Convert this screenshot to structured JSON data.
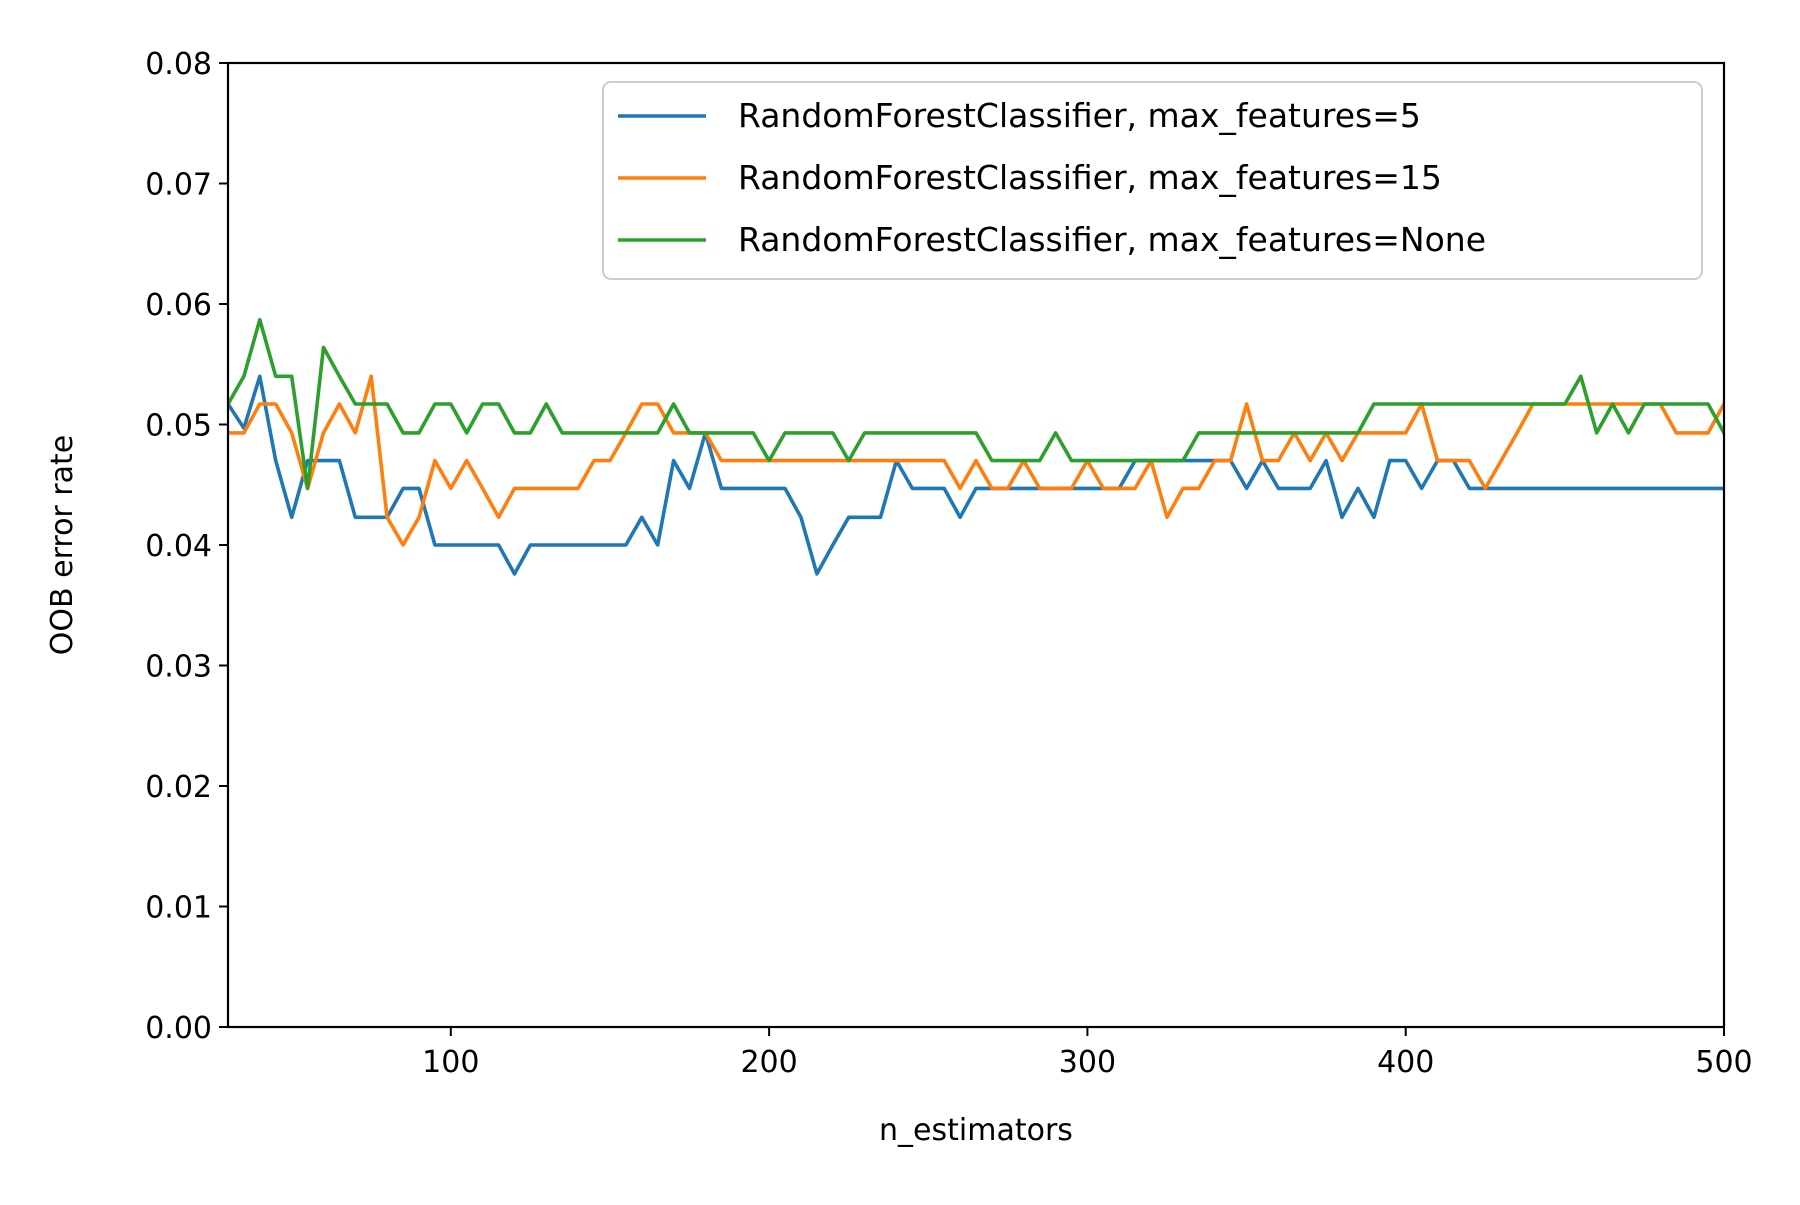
{
  "chart_data": {
    "type": "line",
    "title": "",
    "xlabel": "n_estimators",
    "ylabel": "OOB error rate",
    "xlim": [
      30,
      500
    ],
    "ylim": [
      0,
      0.08
    ],
    "xticks": [
      100,
      200,
      300,
      400,
      500
    ],
    "xtick_labels": [
      "100",
      "200",
      "300",
      "400",
      "500"
    ],
    "yticks": [
      0,
      0.01,
      0.02,
      0.03,
      0.04,
      0.05,
      0.06,
      0.07,
      0.08
    ],
    "ytick_labels": [
      "0.00",
      "0.01",
      "0.02",
      "0.03",
      "0.04",
      "0.05",
      "0.06",
      "0.07",
      "0.08"
    ],
    "grid": false,
    "legend_position": "top-right",
    "series": [
      {
        "name": "RandomForestClassifier, max_features=5",
        "color": "#1f77b4",
        "points": [
          [
            30,
            0.0517
          ],
          [
            35,
            0.0497
          ],
          [
            40,
            0.054
          ],
          [
            45,
            0.047
          ],
          [
            50,
            0.0423
          ],
          [
            55,
            0.047
          ],
          [
            60,
            0.047
          ],
          [
            65,
            0.047
          ],
          [
            70,
            0.0423
          ],
          [
            75,
            0.0423
          ],
          [
            80,
            0.0423
          ],
          [
            85,
            0.0447
          ],
          [
            90,
            0.0447
          ],
          [
            95,
            0.04
          ],
          [
            100,
            0.04
          ],
          [
            105,
            0.04
          ],
          [
            110,
            0.04
          ],
          [
            115,
            0.04
          ],
          [
            120,
            0.0376
          ],
          [
            125,
            0.04
          ],
          [
            130,
            0.04
          ],
          [
            135,
            0.04
          ],
          [
            140,
            0.04
          ],
          [
            145,
            0.04
          ],
          [
            150,
            0.04
          ],
          [
            155,
            0.04
          ],
          [
            160,
            0.0423
          ],
          [
            165,
            0.04
          ],
          [
            170,
            0.047
          ],
          [
            175,
            0.0447
          ],
          [
            180,
            0.0493
          ],
          [
            185,
            0.0447
          ],
          [
            190,
            0.0447
          ],
          [
            195,
            0.0447
          ],
          [
            200,
            0.0447
          ],
          [
            205,
            0.0447
          ],
          [
            210,
            0.0423
          ],
          [
            215,
            0.0376
          ],
          [
            220,
            0.04
          ],
          [
            225,
            0.0423
          ],
          [
            230,
            0.0423
          ],
          [
            235,
            0.0423
          ],
          [
            240,
            0.047
          ],
          [
            245,
            0.0447
          ],
          [
            250,
            0.0447
          ],
          [
            255,
            0.0447
          ],
          [
            260,
            0.0423
          ],
          [
            265,
            0.0447
          ],
          [
            270,
            0.0447
          ],
          [
            275,
            0.0447
          ],
          [
            280,
            0.0447
          ],
          [
            285,
            0.0447
          ],
          [
            290,
            0.0447
          ],
          [
            295,
            0.0447
          ],
          [
            300,
            0.0447
          ],
          [
            305,
            0.0447
          ],
          [
            310,
            0.0447
          ],
          [
            315,
            0.047
          ],
          [
            320,
            0.047
          ],
          [
            325,
            0.047
          ],
          [
            330,
            0.047
          ],
          [
            335,
            0.047
          ],
          [
            340,
            0.047
          ],
          [
            345,
            0.047
          ],
          [
            350,
            0.0447
          ],
          [
            355,
            0.047
          ],
          [
            360,
            0.0447
          ],
          [
            365,
            0.0447
          ],
          [
            370,
            0.0447
          ],
          [
            375,
            0.047
          ],
          [
            380,
            0.0423
          ],
          [
            385,
            0.0447
          ],
          [
            390,
            0.0423
          ],
          [
            395,
            0.047
          ],
          [
            400,
            0.047
          ],
          [
            405,
            0.0447
          ],
          [
            410,
            0.047
          ],
          [
            415,
            0.047
          ],
          [
            420,
            0.0447
          ],
          [
            425,
            0.0447
          ],
          [
            430,
            0.0447
          ],
          [
            435,
            0.0447
          ],
          [
            440,
            0.0447
          ],
          [
            445,
            0.0447
          ],
          [
            450,
            0.0447
          ],
          [
            455,
            0.0447
          ],
          [
            460,
            0.0447
          ],
          [
            465,
            0.0447
          ],
          [
            470,
            0.0447
          ],
          [
            475,
            0.0447
          ],
          [
            480,
            0.0447
          ],
          [
            485,
            0.0447
          ],
          [
            490,
            0.0447
          ],
          [
            495,
            0.0447
          ],
          [
            500,
            0.0447
          ]
        ]
      },
      {
        "name": "RandomForestClassifier, max_features=15",
        "color": "#ff7f0e",
        "points": [
          [
            30,
            0.0493
          ],
          [
            35,
            0.0493
          ],
          [
            40,
            0.0517
          ],
          [
            45,
            0.0517
          ],
          [
            50,
            0.0493
          ],
          [
            55,
            0.0447
          ],
          [
            60,
            0.0493
          ],
          [
            65,
            0.0517
          ],
          [
            70,
            0.0493
          ],
          [
            75,
            0.054
          ],
          [
            80,
            0.0423
          ],
          [
            85,
            0.04
          ],
          [
            90,
            0.0423
          ],
          [
            95,
            0.047
          ],
          [
            100,
            0.0447
          ],
          [
            105,
            0.047
          ],
          [
            110,
            0.0447
          ],
          [
            115,
            0.0423
          ],
          [
            120,
            0.0447
          ],
          [
            125,
            0.0447
          ],
          [
            130,
            0.0447
          ],
          [
            135,
            0.0447
          ],
          [
            140,
            0.0447
          ],
          [
            145,
            0.047
          ],
          [
            150,
            0.047
          ],
          [
            155,
            0.0493
          ],
          [
            160,
            0.0517
          ],
          [
            165,
            0.0517
          ],
          [
            170,
            0.0493
          ],
          [
            175,
            0.0493
          ],
          [
            180,
            0.0493
          ],
          [
            185,
            0.047
          ],
          [
            190,
            0.047
          ],
          [
            195,
            0.047
          ],
          [
            200,
            0.047
          ],
          [
            205,
            0.047
          ],
          [
            210,
            0.047
          ],
          [
            215,
            0.047
          ],
          [
            220,
            0.047
          ],
          [
            225,
            0.047
          ],
          [
            230,
            0.047
          ],
          [
            235,
            0.047
          ],
          [
            240,
            0.047
          ],
          [
            245,
            0.047
          ],
          [
            250,
            0.047
          ],
          [
            255,
            0.047
          ],
          [
            260,
            0.0447
          ],
          [
            265,
            0.047
          ],
          [
            270,
            0.0447
          ],
          [
            275,
            0.0447
          ],
          [
            280,
            0.047
          ],
          [
            285,
            0.0447
          ],
          [
            290,
            0.0447
          ],
          [
            295,
            0.0447
          ],
          [
            300,
            0.047
          ],
          [
            305,
            0.0447
          ],
          [
            310,
            0.0447
          ],
          [
            315,
            0.0447
          ],
          [
            320,
            0.047
          ],
          [
            325,
            0.0423
          ],
          [
            330,
            0.0447
          ],
          [
            335,
            0.0447
          ],
          [
            340,
            0.047
          ],
          [
            345,
            0.047
          ],
          [
            350,
            0.0517
          ],
          [
            355,
            0.047
          ],
          [
            360,
            0.047
          ],
          [
            365,
            0.0493
          ],
          [
            370,
            0.047
          ],
          [
            375,
            0.0493
          ],
          [
            380,
            0.047
          ],
          [
            385,
            0.0493
          ],
          [
            390,
            0.0493
          ],
          [
            395,
            0.0493
          ],
          [
            400,
            0.0493
          ],
          [
            405,
            0.0517
          ],
          [
            410,
            0.047
          ],
          [
            415,
            0.047
          ],
          [
            420,
            0.047
          ],
          [
            425,
            0.0447
          ],
          [
            430,
            0.047
          ],
          [
            435,
            0.0493
          ],
          [
            440,
            0.0517
          ],
          [
            445,
            0.0517
          ],
          [
            450,
            0.0517
          ],
          [
            455,
            0.0517
          ],
          [
            460,
            0.0517
          ],
          [
            465,
            0.0517
          ],
          [
            470,
            0.0517
          ],
          [
            475,
            0.0517
          ],
          [
            480,
            0.0517
          ],
          [
            485,
            0.0493
          ],
          [
            490,
            0.0493
          ],
          [
            495,
            0.0493
          ],
          [
            500,
            0.0517
          ]
        ]
      },
      {
        "name": "RandomForestClassifier, max_features=None",
        "color": "#2ca02c",
        "points": [
          [
            30,
            0.0517
          ],
          [
            35,
            0.054
          ],
          [
            40,
            0.0587
          ],
          [
            45,
            0.054
          ],
          [
            50,
            0.054
          ],
          [
            55,
            0.0447
          ],
          [
            60,
            0.0564
          ],
          [
            65,
            0.054
          ],
          [
            70,
            0.0517
          ],
          [
            75,
            0.0517
          ],
          [
            80,
            0.0517
          ],
          [
            85,
            0.0493
          ],
          [
            90,
            0.0493
          ],
          [
            95,
            0.0517
          ],
          [
            100,
            0.0517
          ],
          [
            105,
            0.0493
          ],
          [
            110,
            0.0517
          ],
          [
            115,
            0.0517
          ],
          [
            120,
            0.0493
          ],
          [
            125,
            0.0493
          ],
          [
            130,
            0.0517
          ],
          [
            135,
            0.0493
          ],
          [
            140,
            0.0493
          ],
          [
            145,
            0.0493
          ],
          [
            150,
            0.0493
          ],
          [
            155,
            0.0493
          ],
          [
            160,
            0.0493
          ],
          [
            165,
            0.0493
          ],
          [
            170,
            0.0517
          ],
          [
            175,
            0.0493
          ],
          [
            180,
            0.0493
          ],
          [
            185,
            0.0493
          ],
          [
            190,
            0.0493
          ],
          [
            195,
            0.0493
          ],
          [
            200,
            0.047
          ],
          [
            205,
            0.0493
          ],
          [
            210,
            0.0493
          ],
          [
            215,
            0.0493
          ],
          [
            220,
            0.0493
          ],
          [
            225,
            0.047
          ],
          [
            230,
            0.0493
          ],
          [
            235,
            0.0493
          ],
          [
            240,
            0.0493
          ],
          [
            245,
            0.0493
          ],
          [
            250,
            0.0493
          ],
          [
            255,
            0.0493
          ],
          [
            260,
            0.0493
          ],
          [
            265,
            0.0493
          ],
          [
            270,
            0.047
          ],
          [
            275,
            0.047
          ],
          [
            280,
            0.047
          ],
          [
            285,
            0.047
          ],
          [
            290,
            0.0493
          ],
          [
            295,
            0.047
          ],
          [
            300,
            0.047
          ],
          [
            305,
            0.047
          ],
          [
            310,
            0.047
          ],
          [
            315,
            0.047
          ],
          [
            320,
            0.047
          ],
          [
            325,
            0.047
          ],
          [
            330,
            0.047
          ],
          [
            335,
            0.0493
          ],
          [
            340,
            0.0493
          ],
          [
            345,
            0.0493
          ],
          [
            350,
            0.0493
          ],
          [
            355,
            0.0493
          ],
          [
            360,
            0.0493
          ],
          [
            365,
            0.0493
          ],
          [
            370,
            0.0493
          ],
          [
            375,
            0.0493
          ],
          [
            380,
            0.0493
          ],
          [
            385,
            0.0493
          ],
          [
            390,
            0.0517
          ],
          [
            395,
            0.0517
          ],
          [
            400,
            0.0517
          ],
          [
            405,
            0.0517
          ],
          [
            410,
            0.0517
          ],
          [
            415,
            0.0517
          ],
          [
            420,
            0.0517
          ],
          [
            425,
            0.0517
          ],
          [
            430,
            0.0517
          ],
          [
            435,
            0.0517
          ],
          [
            440,
            0.0517
          ],
          [
            445,
            0.0517
          ],
          [
            450,
            0.0517
          ],
          [
            455,
            0.054
          ],
          [
            460,
            0.0493
          ],
          [
            465,
            0.0517
          ],
          [
            470,
            0.0493
          ],
          [
            475,
            0.0517
          ],
          [
            480,
            0.0517
          ],
          [
            485,
            0.0517
          ],
          [
            490,
            0.0517
          ],
          [
            495,
            0.0517
          ],
          [
            500,
            0.0493
          ]
        ]
      }
    ]
  }
}
